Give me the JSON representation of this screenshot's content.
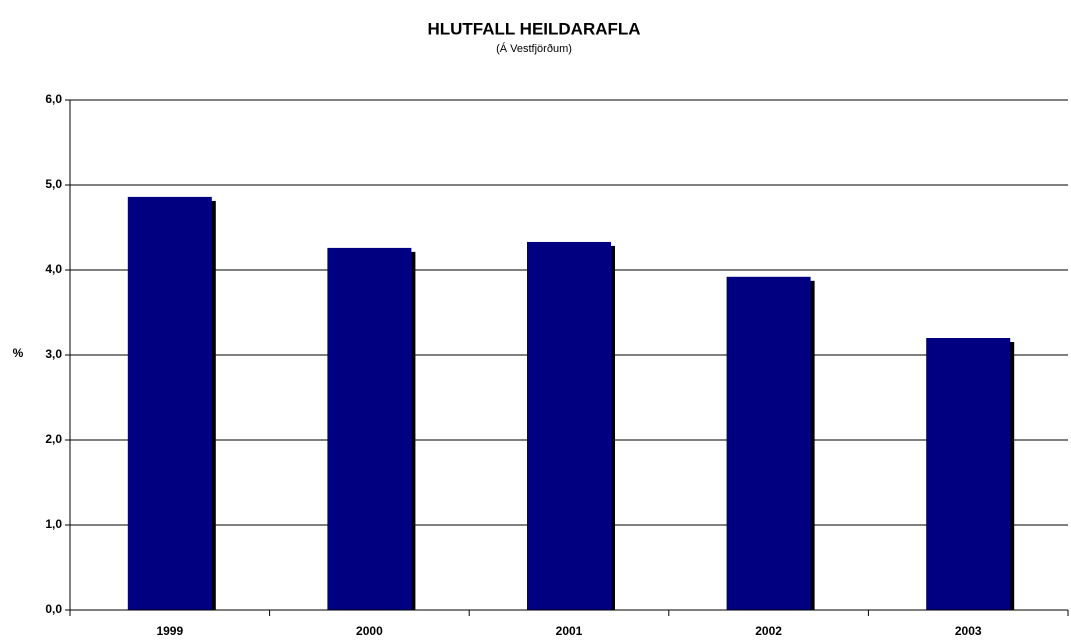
{
  "chart_data": {
    "type": "bar",
    "title": "HLUTFALL HEILDARAFLA",
    "subtitle": "(Á Vestfjörðum)",
    "y_label": "%",
    "categories": [
      "1999",
      "2000",
      "2001",
      "2002",
      "2003"
    ],
    "values": [
      4.86,
      4.26,
      4.33,
      3.92,
      3.2
    ],
    "color": "#000080",
    "shadow_color": "#000000",
    "ylim": [
      0,
      6
    ],
    "yticks": [
      {
        "value": 0,
        "label": "0,0"
      },
      {
        "value": 1,
        "label": "1,0"
      },
      {
        "value": 2,
        "label": "2,0"
      },
      {
        "value": 3,
        "label": "3,0"
      },
      {
        "value": 4,
        "label": "4,0"
      },
      {
        "value": 5,
        "label": "5,0"
      },
      {
        "value": 6,
        "label": "6,0"
      }
    ],
    "grid": true
  }
}
